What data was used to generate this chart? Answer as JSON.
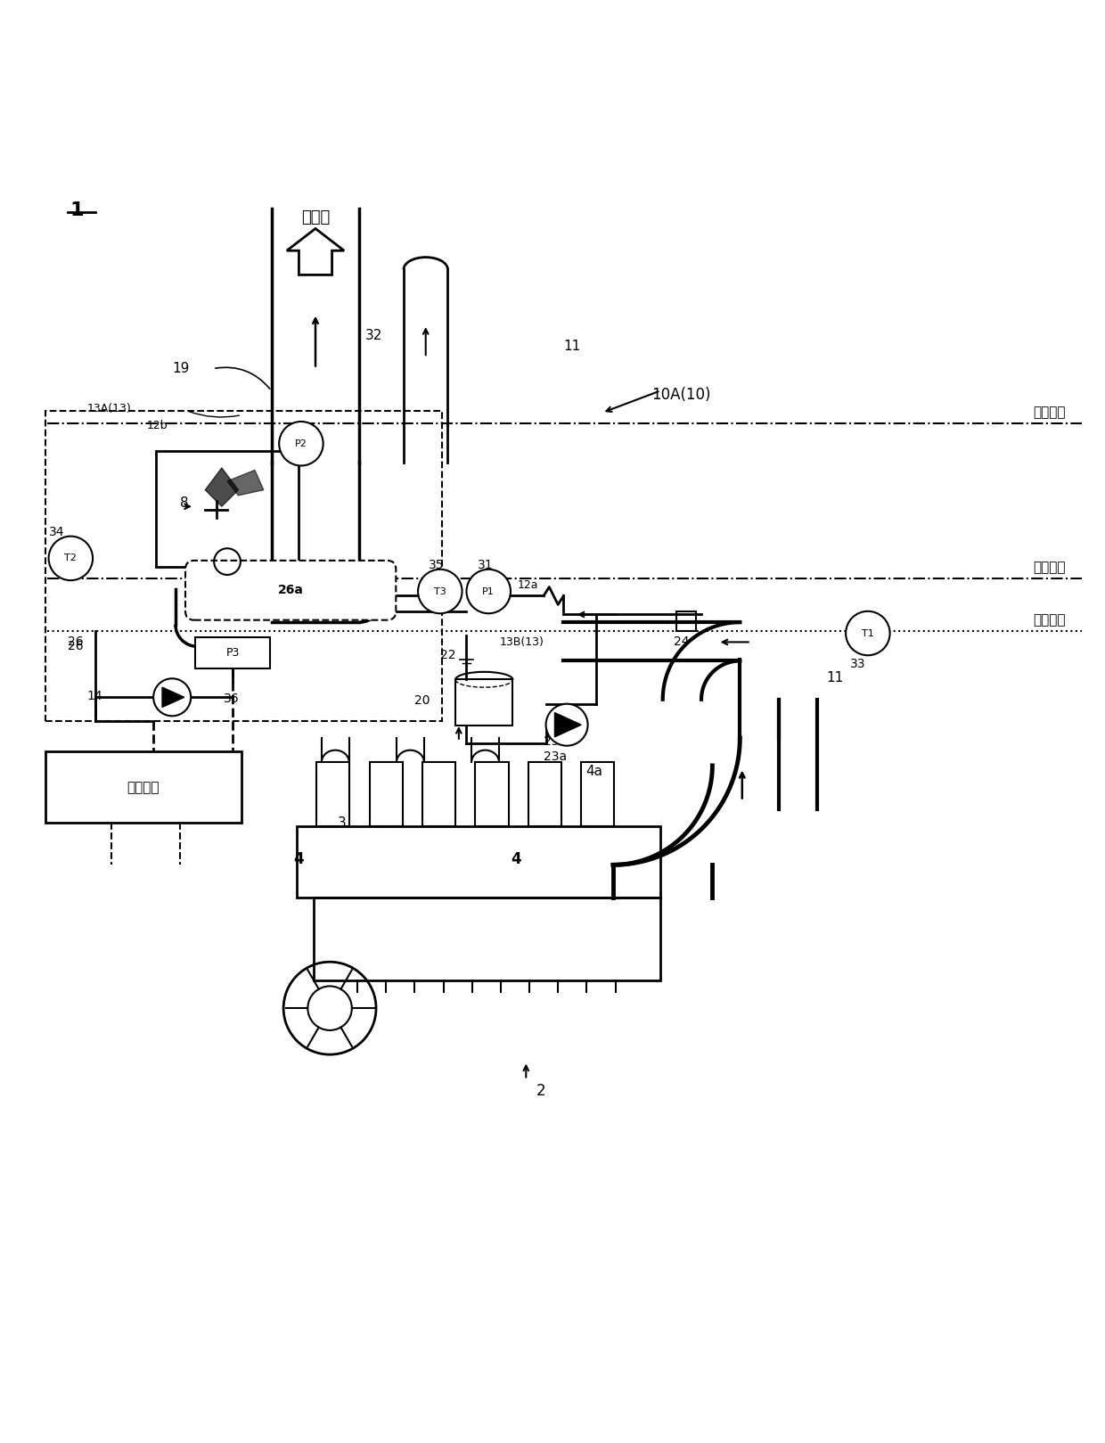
{
  "bg_color": "#ffffff",
  "line_color": "#000000",
  "fig_width": 12.4,
  "fig_height": 16.19,
  "labels": {
    "to_chimney": "至烟囱",
    "upper_deck": "上部甲板",
    "second_deck": "第二甲板",
    "third_deck": "第三甲板",
    "control_device": "控制装置"
  }
}
